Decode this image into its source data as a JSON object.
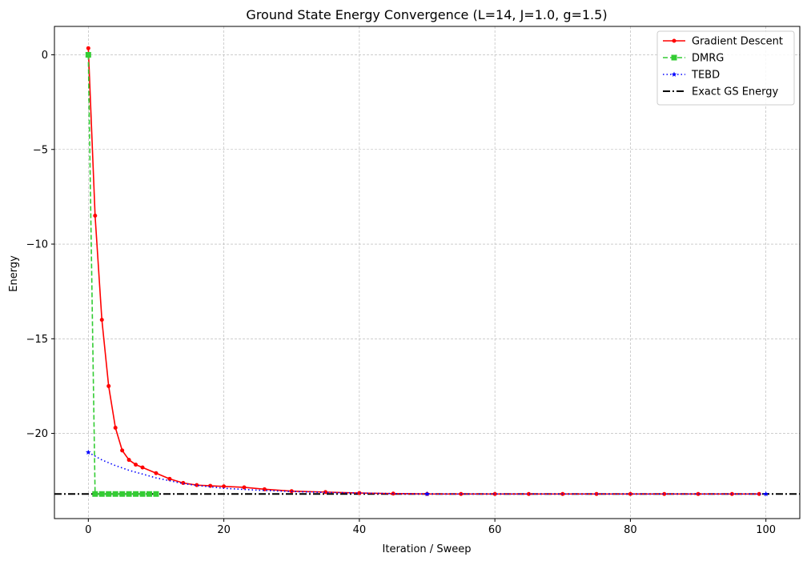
{
  "chart_data": {
    "type": "line",
    "title": "Ground State Energy Convergence (L=14, J=1.0, g=1.5)",
    "xlabel": "Iteration / Sweep",
    "ylabel": "Energy",
    "xlim": [
      -5,
      105
    ],
    "ylim": [
      -24.5,
      1.5
    ],
    "xticks": [
      0,
      20,
      40,
      60,
      80,
      100
    ],
    "yticks": [
      0,
      -5,
      -10,
      -15,
      -20
    ],
    "xtick_labels": [
      "0",
      "20",
      "40",
      "60",
      "80",
      "100"
    ],
    "ytick_labels": [
      "0",
      "−5",
      "−10",
      "−15",
      "−20"
    ],
    "grid": true,
    "legend_position": "top-right",
    "series": [
      {
        "name": "Gradient Descent",
        "color": "#ff0000",
        "linestyle": "solid",
        "marker": "circle",
        "x": [
          0,
          1,
          2,
          3,
          4,
          5,
          6,
          7,
          8,
          10,
          12,
          14,
          16,
          18,
          20,
          23,
          26,
          30,
          35,
          40,
          45,
          50,
          55,
          60,
          65,
          70,
          75,
          80,
          85,
          90,
          95,
          99
        ],
        "y": [
          0.35,
          -8.5,
          -14.0,
          -17.5,
          -19.7,
          -20.9,
          -21.4,
          -21.65,
          -21.8,
          -22.1,
          -22.4,
          -22.62,
          -22.73,
          -22.77,
          -22.8,
          -22.85,
          -22.95,
          -23.05,
          -23.1,
          -23.15,
          -23.18,
          -23.2,
          -23.2,
          -23.2,
          -23.2,
          -23.2,
          -23.2,
          -23.2,
          -23.2,
          -23.2,
          -23.2,
          -23.2
        ]
      },
      {
        "name": "DMRG",
        "color": "#33cc33",
        "linestyle": "dashed",
        "marker": "square",
        "x": [
          0,
          1,
          2,
          3,
          4,
          5,
          6,
          7,
          8,
          9,
          10
        ],
        "y": [
          0.0,
          -23.2,
          -23.2,
          -23.2,
          -23.2,
          -23.2,
          -23.2,
          -23.2,
          -23.2,
          -23.2,
          -23.2
        ]
      },
      {
        "name": "TEBD",
        "color": "#0000ff",
        "linestyle": "dotted",
        "marker": "star",
        "x": [
          0,
          2,
          4,
          6,
          8,
          10,
          12,
          14,
          16,
          18,
          20,
          25,
          30,
          35,
          40,
          45,
          50,
          60,
          70,
          80,
          90,
          100
        ],
        "y": [
          -21.0,
          -21.4,
          -21.7,
          -21.95,
          -22.15,
          -22.35,
          -22.5,
          -22.65,
          -22.75,
          -22.82,
          -22.9,
          -23.0,
          -23.07,
          -23.12,
          -23.15,
          -23.18,
          -23.2,
          -23.2,
          -23.2,
          -23.2,
          -23.2,
          -23.2
        ],
        "marker_x": [
          0,
          50,
          100
        ]
      },
      {
        "name": "Exact GS Energy",
        "color": "#000000",
        "linestyle": "dashdot",
        "marker": "none",
        "hline": -23.2
      }
    ]
  }
}
